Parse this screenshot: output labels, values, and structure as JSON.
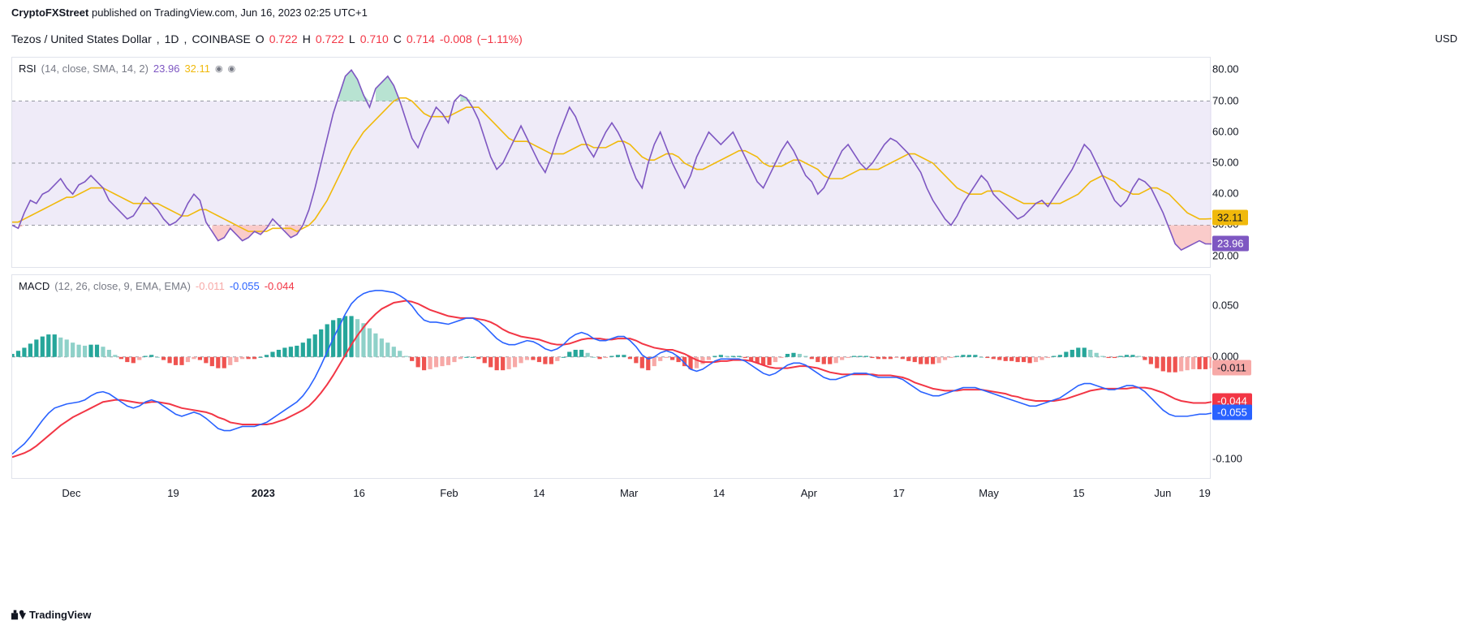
{
  "header": {
    "author": "CryptoFXStreet",
    "published_on": "published on TradingView.com,",
    "timestamp": "Jun 16, 2023 02:25 UTC+1"
  },
  "symbol": {
    "pair": "Tezos / United States Dollar",
    "interval": "1D",
    "exchange": "COINBASE",
    "o_label": "O",
    "o_val": "0.722",
    "h_label": "H",
    "h_val": "0.722",
    "l_label": "L",
    "l_val": "0.710",
    "c_label": "C",
    "c_val": "0.714",
    "chg_abs": "-0.008",
    "chg_pct": "(−1.11%)",
    "currency": "USD",
    "ohlc_color": "#f23645"
  },
  "rsi": {
    "type": "line",
    "legend_name": "RSI",
    "legend_params": "(14, close, SMA, 14, 2)",
    "val_main": "23.96",
    "val_sma": "32.11",
    "color_main": "#7e57c2",
    "color_sma": "#f0b90b",
    "fill_color": "#e8e3f5",
    "background_color": "#ffffff",
    "grid_color": "#9598a1",
    "ylim": [
      16,
      84
    ],
    "yticks": [
      20,
      30,
      40,
      50,
      60,
      70,
      80
    ],
    "band_lo": 30,
    "band_hi": 70,
    "badge_main": {
      "value": "23.96",
      "bg": "#7e57c2"
    },
    "badge_sma": {
      "value": "32.11",
      "bg": "#f0b90b"
    },
    "series_main": [
      30,
      29,
      34,
      38,
      37,
      40,
      41,
      43,
      45,
      42,
      40,
      43,
      44,
      46,
      44,
      42,
      38,
      36,
      34,
      32,
      33,
      36,
      39,
      37,
      35,
      32,
      30,
      31,
      33,
      37,
      40,
      38,
      31,
      28,
      25,
      26,
      29,
      27,
      25,
      26,
      28,
      27,
      29,
      32,
      30,
      28,
      26,
      27,
      30,
      35,
      42,
      50,
      58,
      66,
      72,
      78,
      80,
      77,
      72,
      68,
      74,
      76,
      78,
      75,
      70,
      64,
      58,
      55,
      60,
      64,
      68,
      66,
      63,
      70,
      72,
      71,
      68,
      64,
      58,
      52,
      48,
      50,
      54,
      58,
      62,
      58,
      54,
      50,
      47,
      52,
      58,
      63,
      68,
      65,
      60,
      55,
      52,
      56,
      60,
      63,
      60,
      56,
      50,
      45,
      42,
      50,
      56,
      60,
      55,
      50,
      46,
      42,
      46,
      52,
      56,
      60,
      58,
      56,
      58,
      60,
      56,
      52,
      48,
      44,
      42,
      46,
      50,
      54,
      57,
      54,
      50,
      46,
      44,
      40,
      42,
      46,
      50,
      54,
      56,
      53,
      50,
      48,
      50,
      53,
      56,
      58,
      57,
      55,
      53,
      50,
      47,
      42,
      38,
      35,
      32,
      30,
      33,
      37,
      40,
      43,
      46,
      44,
      40,
      38,
      36,
      34,
      32,
      33,
      35,
      37,
      38,
      36,
      39,
      42,
      45,
      48,
      52,
      56,
      54,
      50,
      46,
      42,
      38,
      36,
      38,
      42,
      45,
      44,
      42,
      38,
      34,
      29,
      24,
      22,
      23,
      24,
      25,
      24,
      23.96
    ],
    "series_sma": [
      31,
      31,
      32,
      33,
      34,
      35,
      36,
      37,
      38,
      39,
      39,
      40,
      41,
      42,
      42,
      42,
      41,
      40,
      39,
      38,
      37,
      37,
      37,
      37,
      37,
      36,
      35,
      34,
      33,
      33,
      34,
      35,
      35,
      34,
      33,
      32,
      31,
      30,
      29,
      28,
      28,
      28,
      28,
      29,
      29,
      29,
      29,
      28,
      29,
      30,
      32,
      35,
      38,
      42,
      46,
      50,
      54,
      57,
      60,
      62,
      64,
      66,
      68,
      70,
      71,
      71,
      70,
      68,
      66,
      65,
      65,
      65,
      65,
      66,
      67,
      68,
      68,
      68,
      66,
      64,
      62,
      60,
      58,
      57,
      57,
      57,
      56,
      55,
      54,
      53,
      53,
      53,
      54,
      55,
      56,
      56,
      55,
      55,
      55,
      56,
      57,
      57,
      56,
      54,
      52,
      51,
      51,
      52,
      53,
      53,
      52,
      50,
      49,
      48,
      48,
      49,
      50,
      51,
      52,
      53,
      54,
      54,
      53,
      52,
      50,
      49,
      49,
      49,
      50,
      51,
      51,
      50,
      49,
      48,
      46,
      45,
      45,
      45,
      46,
      47,
      48,
      48,
      48,
      48,
      49,
      50,
      51,
      52,
      53,
      53,
      52,
      51,
      50,
      48,
      46,
      44,
      42,
      41,
      40,
      40,
      40,
      41,
      41,
      41,
      40,
      39,
      38,
      37,
      37,
      37,
      37,
      37,
      37,
      37,
      38,
      39,
      40,
      42,
      44,
      45,
      46,
      45,
      44,
      42,
      41,
      40,
      40,
      41,
      42,
      42,
      41,
      40,
      38,
      36,
      34,
      33,
      32,
      32,
      32.11
    ]
  },
  "macd": {
    "type": "macd",
    "legend_name": "MACD",
    "legend_params": "(12, 26, close, 9, EMA, EMA)",
    "val_hist": "-0.011",
    "val_macd": "-0.055",
    "val_sig": "-0.044",
    "color_hist_label": "#f7a9a7",
    "color_macd": "#2962ff",
    "color_sig": "#f23645",
    "color_hist_pos_strong": "#26a69a",
    "color_hist_pos_weak": "#8fd1c9",
    "color_hist_neg_strong": "#ef5350",
    "color_hist_neg_weak": "#f7a9a7",
    "background_color": "#ffffff",
    "ylim": [
      -0.12,
      0.08
    ],
    "yticks": [
      -0.1,
      -0.05,
      0.0,
      0.05
    ],
    "ytick_labels": [
      "-0.100",
      "-0.050",
      "0.000",
      "0.050"
    ],
    "badge_hist": {
      "value": "-0.011",
      "bg": "#f7a9a7"
    },
    "badge_sig": {
      "value": "-0.044",
      "bg": "#f23645"
    },
    "badge_macd": {
      "value": "-0.055",
      "bg": "#2962ff"
    },
    "series_macd": [
      -0.095,
      -0.09,
      -0.085,
      -0.078,
      -0.07,
      -0.062,
      -0.055,
      -0.05,
      -0.048,
      -0.046,
      -0.045,
      -0.044,
      -0.042,
      -0.038,
      -0.035,
      -0.034,
      -0.036,
      -0.04,
      -0.044,
      -0.048,
      -0.05,
      -0.048,
      -0.044,
      -0.042,
      -0.044,
      -0.048,
      -0.052,
      -0.056,
      -0.058,
      -0.056,
      -0.054,
      -0.056,
      -0.06,
      -0.065,
      -0.07,
      -0.072,
      -0.072,
      -0.07,
      -0.068,
      -0.068,
      -0.068,
      -0.066,
      -0.064,
      -0.06,
      -0.056,
      -0.052,
      -0.048,
      -0.044,
      -0.038,
      -0.03,
      -0.02,
      -0.008,
      0.005,
      0.018,
      0.03,
      0.042,
      0.052,
      0.058,
      0.062,
      0.064,
      0.065,
      0.065,
      0.064,
      0.063,
      0.06,
      0.056,
      0.05,
      0.042,
      0.036,
      0.034,
      0.034,
      0.033,
      0.032,
      0.034,
      0.036,
      0.038,
      0.038,
      0.035,
      0.03,
      0.024,
      0.018,
      0.014,
      0.012,
      0.012,
      0.014,
      0.016,
      0.015,
      0.012,
      0.008,
      0.006,
      0.008,
      0.012,
      0.018,
      0.022,
      0.024,
      0.022,
      0.018,
      0.016,
      0.016,
      0.018,
      0.02,
      0.02,
      0.016,
      0.01,
      0.002,
      -0.002,
      0.0,
      0.004,
      0.006,
      0.004,
      0.0,
      -0.006,
      -0.012,
      -0.014,
      -0.012,
      -0.008,
      -0.004,
      -0.002,
      -0.002,
      -0.002,
      -0.002,
      -0.004,
      -0.008,
      -0.012,
      -0.016,
      -0.018,
      -0.016,
      -0.012,
      -0.008,
      -0.006,
      -0.006,
      -0.008,
      -0.012,
      -0.016,
      -0.02,
      -0.022,
      -0.022,
      -0.02,
      -0.018,
      -0.016,
      -0.016,
      -0.016,
      -0.018,
      -0.02,
      -0.02,
      -0.02,
      -0.02,
      -0.022,
      -0.026,
      -0.03,
      -0.034,
      -0.036,
      -0.038,
      -0.038,
      -0.036,
      -0.034,
      -0.032,
      -0.03,
      -0.03,
      -0.03,
      -0.032,
      -0.034,
      -0.036,
      -0.038,
      -0.04,
      -0.042,
      -0.044,
      -0.046,
      -0.048,
      -0.048,
      -0.046,
      -0.044,
      -0.042,
      -0.04,
      -0.036,
      -0.032,
      -0.028,
      -0.026,
      -0.026,
      -0.028,
      -0.03,
      -0.032,
      -0.032,
      -0.03,
      -0.028,
      -0.028,
      -0.03,
      -0.034,
      -0.04,
      -0.046,
      -0.052,
      -0.056,
      -0.058,
      -0.058,
      -0.058,
      -0.057,
      -0.056,
      -0.056,
      -0.055
    ],
    "series_sig": [
      -0.098,
      -0.096,
      -0.094,
      -0.091,
      -0.087,
      -0.082,
      -0.077,
      -0.072,
      -0.067,
      -0.063,
      -0.059,
      -0.056,
      -0.053,
      -0.05,
      -0.047,
      -0.044,
      -0.043,
      -0.042,
      -0.042,
      -0.043,
      -0.044,
      -0.045,
      -0.045,
      -0.044,
      -0.044,
      -0.045,
      -0.046,
      -0.048,
      -0.05,
      -0.051,
      -0.052,
      -0.053,
      -0.054,
      -0.056,
      -0.059,
      -0.061,
      -0.064,
      -0.065,
      -0.066,
      -0.066,
      -0.066,
      -0.066,
      -0.066,
      -0.065,
      -0.063,
      -0.061,
      -0.058,
      -0.055,
      -0.052,
      -0.048,
      -0.042,
      -0.035,
      -0.027,
      -0.018,
      -0.008,
      0.002,
      0.012,
      0.021,
      0.029,
      0.036,
      0.042,
      0.047,
      0.05,
      0.053,
      0.054,
      0.055,
      0.054,
      0.052,
      0.049,
      0.046,
      0.044,
      0.042,
      0.04,
      0.039,
      0.038,
      0.038,
      0.038,
      0.037,
      0.036,
      0.034,
      0.031,
      0.027,
      0.024,
      0.022,
      0.02,
      0.019,
      0.018,
      0.017,
      0.015,
      0.013,
      0.012,
      0.012,
      0.013,
      0.015,
      0.017,
      0.018,
      0.018,
      0.018,
      0.017,
      0.017,
      0.018,
      0.018,
      0.018,
      0.016,
      0.013,
      0.011,
      0.009,
      0.008,
      0.007,
      0.007,
      0.005,
      0.003,
      0.0,
      -0.003,
      -0.005,
      -0.005,
      -0.005,
      -0.004,
      -0.004,
      -0.003,
      -0.003,
      -0.003,
      -0.004,
      -0.006,
      -0.008,
      -0.01,
      -0.011,
      -0.011,
      -0.011,
      -0.01,
      -0.009,
      -0.009,
      -0.01,
      -0.011,
      -0.013,
      -0.015,
      -0.016,
      -0.017,
      -0.017,
      -0.017,
      -0.017,
      -0.017,
      -0.017,
      -0.018,
      -0.018,
      -0.018,
      -0.019,
      -0.02,
      -0.022,
      -0.025,
      -0.027,
      -0.029,
      -0.031,
      -0.032,
      -0.033,
      -0.033,
      -0.033,
      -0.032,
      -0.032,
      -0.032,
      -0.032,
      -0.033,
      -0.034,
      -0.035,
      -0.036,
      -0.038,
      -0.039,
      -0.041,
      -0.042,
      -0.043,
      -0.043,
      -0.043,
      -0.043,
      -0.042,
      -0.041,
      -0.039,
      -0.037,
      -0.035,
      -0.033,
      -0.032,
      -0.031,
      -0.031,
      -0.031,
      -0.031,
      -0.031,
      -0.03,
      -0.03,
      -0.03,
      -0.031,
      -0.033,
      -0.035,
      -0.038,
      -0.041,
      -0.043,
      -0.044,
      -0.045,
      -0.045,
      -0.045,
      -0.044,
      -0.044
    ],
    "series_hist": [
      0.003,
      0.006,
      0.009,
      0.013,
      0.017,
      0.02,
      0.022,
      0.022,
      0.019,
      0.017,
      0.014,
      0.012,
      0.011,
      0.012,
      0.012,
      0.01,
      0.007,
      0.002,
      -0.002,
      -0.005,
      -0.006,
      -0.003,
      0.001,
      0.002,
      0.0,
      -0.003,
      -0.006,
      -0.008,
      -0.008,
      -0.005,
      -0.002,
      -0.003,
      -0.006,
      -0.009,
      -0.011,
      -0.011,
      -0.008,
      -0.005,
      -0.002,
      -0.002,
      -0.002,
      0.0,
      0.002,
      0.005,
      0.007,
      0.009,
      0.01,
      0.011,
      0.014,
      0.018,
      0.022,
      0.027,
      0.032,
      0.036,
      0.038,
      0.04,
      0.04,
      0.037,
      0.033,
      0.028,
      0.023,
      0.018,
      0.014,
      0.01,
      0.006,
      0.001,
      -0.004,
      -0.01,
      -0.013,
      -0.012,
      -0.01,
      -0.009,
      -0.008,
      -0.005,
      -0.002,
      0.0,
      0.0,
      -0.002,
      -0.006,
      -0.01,
      -0.013,
      -0.013,
      -0.012,
      -0.01,
      -0.006,
      -0.003,
      -0.003,
      -0.005,
      -0.007,
      -0.007,
      -0.004,
      0.0,
      0.005,
      0.007,
      0.007,
      0.004,
      0.0,
      -0.002,
      -0.001,
      0.001,
      0.002,
      0.002,
      -0.002,
      -0.006,
      -0.011,
      -0.013,
      -0.009,
      -0.004,
      -0.001,
      -0.003,
      -0.005,
      -0.009,
      -0.012,
      -0.011,
      -0.007,
      -0.003,
      0.001,
      0.002,
      0.001,
      0.001,
      0.001,
      -0.001,
      -0.004,
      -0.006,
      -0.008,
      -0.008,
      -0.005,
      -0.001,
      0.003,
      0.004,
      0.003,
      0.001,
      -0.002,
      -0.005,
      -0.007,
      -0.007,
      -0.006,
      -0.003,
      -0.001,
      0.001,
      0.001,
      0.001,
      -0.001,
      -0.002,
      -0.002,
      -0.002,
      -0.001,
      -0.002,
      -0.004,
      -0.005,
      -0.007,
      -0.007,
      -0.007,
      -0.006,
      -0.003,
      -0.001,
      0.001,
      0.002,
      0.002,
      0.002,
      0.0,
      -0.001,
      -0.002,
      -0.003,
      -0.004,
      -0.004,
      -0.005,
      -0.005,
      -0.006,
      -0.005,
      -0.003,
      -0.001,
      0.001,
      0.002,
      0.005,
      0.007,
      0.009,
      0.009,
      0.007,
      0.004,
      0.001,
      -0.001,
      -0.001,
      0.001,
      0.002,
      0.002,
      0.001,
      -0.003,
      -0.007,
      -0.011,
      -0.014,
      -0.015,
      -0.015,
      -0.014,
      -0.013,
      -0.012,
      -0.012,
      -0.012,
      -0.011
    ]
  },
  "x_axis": {
    "labels": [
      "Dec",
      "19",
      "2023",
      "16",
      "Feb",
      "14",
      "Mar",
      "14",
      "Apr",
      "17",
      "May",
      "15",
      "Jun",
      "19"
    ],
    "bold_idx": 2,
    "positions_pct": [
      5.0,
      13.5,
      21.0,
      29.0,
      36.5,
      44.0,
      51.5,
      59.0,
      66.5,
      74.0,
      81.5,
      89.0,
      96.0,
      99.5
    ]
  },
  "footer": {
    "logo": "TradingView"
  }
}
